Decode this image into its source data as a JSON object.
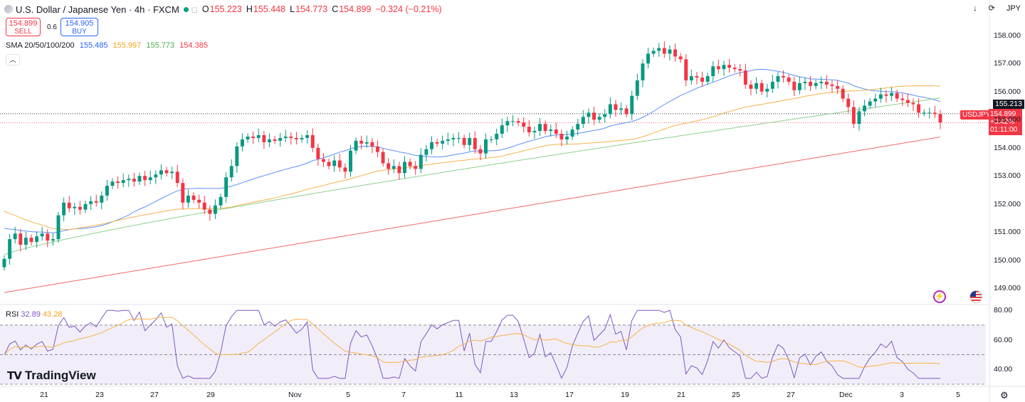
{
  "header": {
    "symbol": "U.S. Dollar / Japanese Yen · 4h · FXCM",
    "open_label": "O",
    "open": "155.223",
    "high_label": "H",
    "high": "155.448",
    "low_label": "L",
    "low": "154.773",
    "close_label": "C",
    "close": "154.899",
    "change": "−0.324 (−0.21%)"
  },
  "trade": {
    "sell_price": "154.899",
    "sell_label": "SELL",
    "spread": "0.6",
    "buy_price": "154.905",
    "buy_label": "BUY"
  },
  "indicators": {
    "sma_label": "SMA 20/50/100/200",
    "sma20": "155.485",
    "sma50": "155.997",
    "sma100": "155.773",
    "sma200": "154.385",
    "rsi_label": "RSI",
    "rsi1": "32.89",
    "rsi2": "43.28"
  },
  "topright": {
    "currency": "JPY"
  },
  "price_axis": {
    "labels": [
      "158.000",
      "157.000",
      "156.000",
      "155.000",
      "154.000",
      "153.000",
      "152.000",
      "151.000",
      "150.000",
      "149.000"
    ],
    "ref_line": "155.213",
    "symbol_tag": "USDJPY",
    "last_price": "154.899",
    "last_change": "+3.42%",
    "countdown": "01:11:00"
  },
  "rsi_axis": {
    "labels": [
      "80.00",
      "60.00",
      "40.00"
    ]
  },
  "time_axis": {
    "labels": [
      "21",
      "23",
      "27",
      "29",
      "Nov",
      "5",
      "7",
      "11",
      "13",
      "17",
      "19",
      "21",
      "25",
      "27",
      "Dec",
      "3",
      "5"
    ]
  },
  "branding": {
    "name": "TradingView"
  },
  "colors": {
    "up": "#089981",
    "down": "#f23645",
    "sma20": "#5b8ff9",
    "sma50": "#f7b24a",
    "sma100": "#8fcf8f",
    "sma200": "#ef6b6b",
    "rsi": "#7e57c2"
  },
  "chart_data": {
    "type": "candlestick",
    "price_range": [
      148.5,
      158.5
    ],
    "closes": [
      150.05,
      150.75,
      150.95,
      150.55,
      150.8,
      150.65,
      150.85,
      150.95,
      150.7,
      150.75,
      151.6,
      152.05,
      151.85,
      151.9,
      151.8,
      152.0,
      152.1,
      152.05,
      152.3,
      152.65,
      152.8,
      152.75,
      152.85,
      152.9,
      152.8,
      153.0,
      152.85,
      152.95,
      153.05,
      153.2,
      153.1,
      153.15,
      152.75,
      152.05,
      152.3,
      152.15,
      152.05,
      151.8,
      151.65,
      151.95,
      152.25,
      152.95,
      153.35,
      154.05,
      154.3,
      154.4,
      154.35,
      154.45,
      154.2,
      154.3,
      154.25,
      154.35,
      154.4,
      154.35,
      154.3,
      154.35,
      154.45,
      154.0,
      153.6,
      153.5,
      153.35,
      153.55,
      153.3,
      153.15,
      153.9,
      154.25,
      154.15,
      154.2,
      154.05,
      153.85,
      153.45,
      153.25,
      153.35,
      153.1,
      153.5,
      153.35,
      153.25,
      153.75,
      153.95,
      154.2,
      154.15,
      154.25,
      154.3,
      154.35,
      154.35,
      154.1,
      154.35,
      153.95,
      153.8,
      154.3,
      154.3,
      154.5,
      154.8,
      154.95,
      154.95,
      154.9,
      154.75,
      154.55,
      154.6,
      154.85,
      154.6,
      154.65,
      154.5,
      154.3,
      154.4,
      154.65,
      154.85,
      155.1,
      155.25,
      155.0,
      155.1,
      155.2,
      155.55,
      155.35,
      155.4,
      155.2,
      155.85,
      156.4,
      157.0,
      157.35,
      157.45,
      157.55,
      157.35,
      157.5,
      157.25,
      157.15,
      156.4,
      156.55,
      156.5,
      156.35,
      156.55,
      156.9,
      156.8,
      156.95,
      156.85,
      156.8,
      156.75,
      156.25,
      156.1,
      156.3,
      156.0,
      156.1,
      156.35,
      156.55,
      156.5,
      156.35,
      156.05,
      156.3,
      156.35,
      156.2,
      156.3,
      156.35,
      156.25,
      156.2,
      156.1,
      155.75,
      155.45,
      154.85,
      155.3,
      155.5,
      155.65,
      155.75,
      155.9,
      155.85,
      155.95,
      155.75,
      155.7,
      155.6,
      155.55,
      155.25,
      155.25,
      155.25,
      155.2,
      154.9
    ],
    "sma_last": {
      "sma20": 155.485,
      "sma50": 155.997,
      "sma100": 155.773,
      "sma200": 154.385
    },
    "rsi_range": [
      30,
      82
    ],
    "rsi_levels": [
      70,
      50,
      30
    ]
  }
}
